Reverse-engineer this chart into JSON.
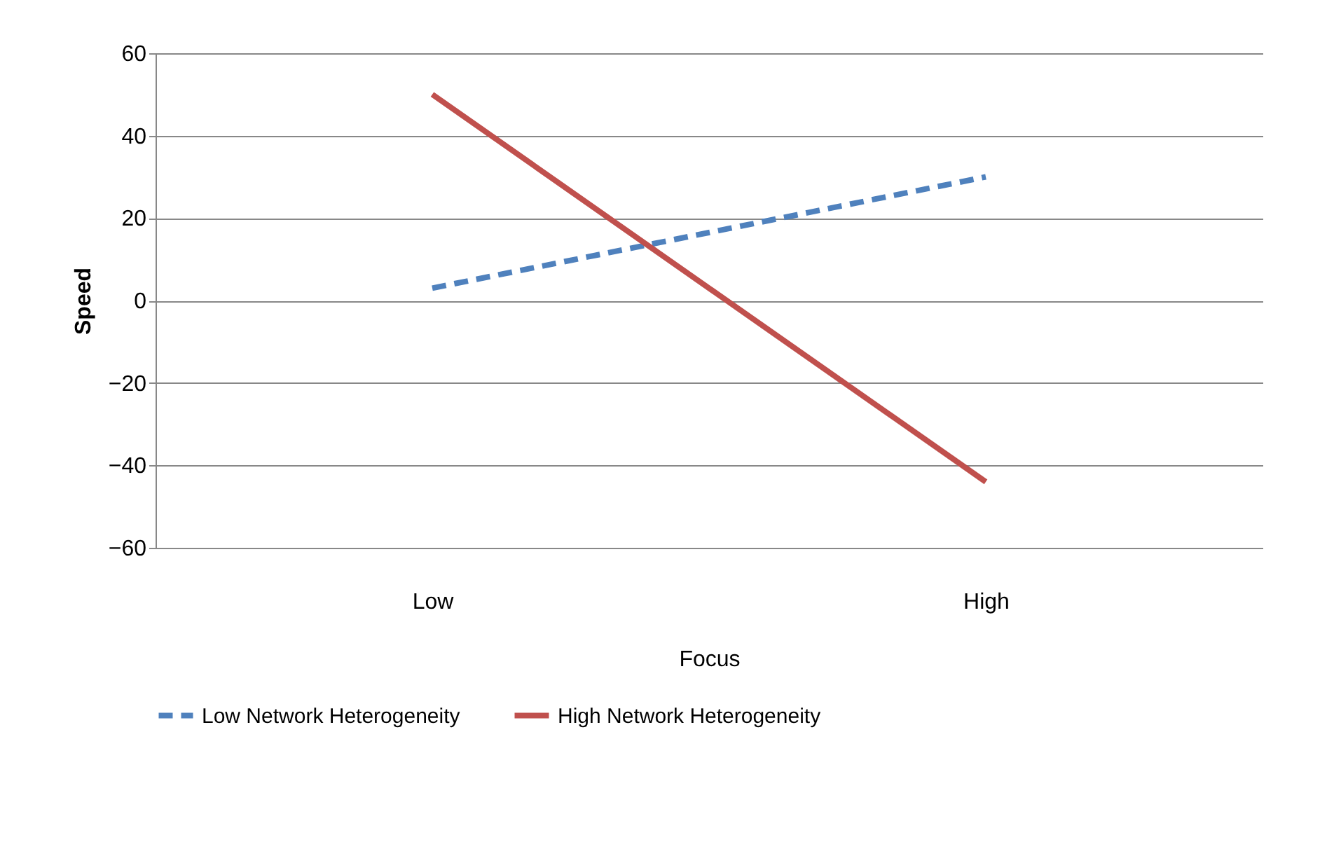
{
  "chart_data": {
    "type": "line",
    "xlabel": "Focus",
    "ylabel": "Speed",
    "categories": [
      "Low",
      "High"
    ],
    "series": [
      {
        "name": "Low Network Heterogeneity",
        "color": "#4f81bd",
        "line_style": "dashed",
        "values": [
          3,
          30
        ]
      },
      {
        "name": "High Network Heterogeneity",
        "color": "#c0504d",
        "line_style": "solid",
        "values": [
          50,
          -44
        ]
      }
    ],
    "ylim": [
      -60,
      60
    ],
    "yticks": [
      -60,
      -40,
      -20,
      0,
      20,
      40,
      60
    ],
    "grid": "y",
    "legend": "bottom",
    "marker": "none"
  }
}
